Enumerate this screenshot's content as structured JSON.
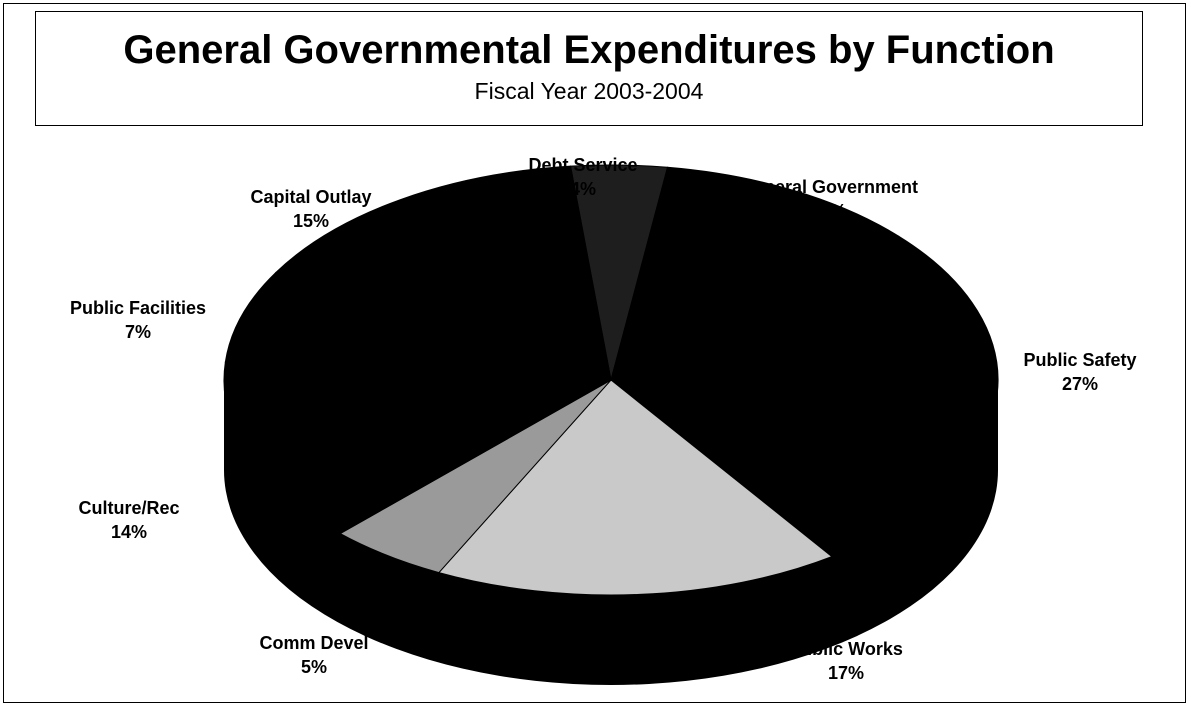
{
  "chart_data": {
    "type": "pie",
    "title": "General Governmental Expenditures by Function",
    "subtitle": "Fiscal Year 2003-2004",
    "slices": [
      {
        "label": "Debt Service",
        "value": 4,
        "value_label": "4%",
        "color": "#1e1e1e"
      },
      {
        "label": "General Government",
        "value": 11,
        "value_label": "11%",
        "color": "#000000"
      },
      {
        "label": "Public Safety",
        "value": 27,
        "value_label": "27%",
        "color": "#000000"
      },
      {
        "label": "Public Works",
        "value": 17,
        "value_label": "17%",
        "color": "#c9c9c9"
      },
      {
        "label": "Comm Devel",
        "value": 5,
        "value_label": "5%",
        "color": "#9a9a9a"
      },
      {
        "label": "Culture/Rec",
        "value": 14,
        "value_label": "14%",
        "color": "#000000"
      },
      {
        "label": "Public Facilities",
        "value": 7,
        "value_label": "7%",
        "color": "#000000"
      },
      {
        "label": "Capital Outlay",
        "value": 15,
        "value_label": "15%",
        "color": "#000000"
      }
    ],
    "style": "3d-pie"
  }
}
